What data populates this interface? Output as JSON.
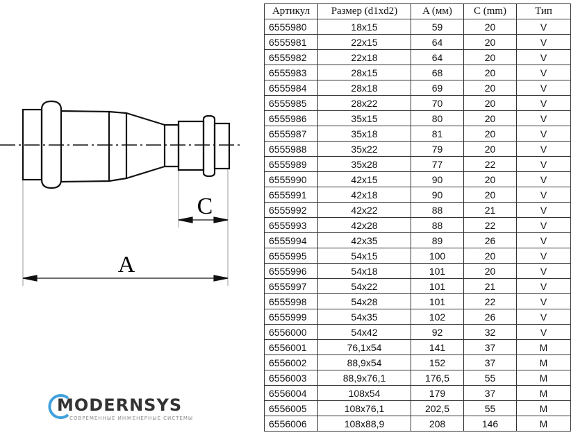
{
  "drawing": {
    "label_a": "A",
    "label_c": "C"
  },
  "table": {
    "headers": [
      "Артикул",
      "Размер (d1xd2)",
      "A (мм)",
      "C (mm)",
      "Тип"
    ],
    "rows": [
      [
        "6555980",
        "18x15",
        "59",
        "20",
        "V"
      ],
      [
        "6555981",
        "22x15",
        "64",
        "20",
        "V"
      ],
      [
        "6555982",
        "22x18",
        "64",
        "20",
        "V"
      ],
      [
        "6555983",
        "28x15",
        "68",
        "20",
        "V"
      ],
      [
        "6555984",
        "28x18",
        "69",
        "20",
        "V"
      ],
      [
        "6555985",
        "28x22",
        "70",
        "20",
        "V"
      ],
      [
        "6555986",
        "35x15",
        "80",
        "20",
        "V"
      ],
      [
        "6555987",
        "35x18",
        "81",
        "20",
        "V"
      ],
      [
        "6555988",
        "35x22",
        "79",
        "20",
        "V"
      ],
      [
        "6555989",
        "35x28",
        "77",
        "22",
        "V"
      ],
      [
        "6555990",
        "42x15",
        "90",
        "20",
        "V"
      ],
      [
        "6555991",
        "42x18",
        "90",
        "20",
        "V"
      ],
      [
        "6555992",
        "42x22",
        "88",
        "21",
        "V"
      ],
      [
        "6555993",
        "42x28",
        "88",
        "22",
        "V"
      ],
      [
        "6555994",
        "42x35",
        "89",
        "26",
        "V"
      ],
      [
        "6555995",
        "54x15",
        "100",
        "20",
        "V"
      ],
      [
        "6555996",
        "54x18",
        "101",
        "20",
        "V"
      ],
      [
        "6555997",
        "54x22",
        "101",
        "21",
        "V"
      ],
      [
        "6555998",
        "54x28",
        "101",
        "22",
        "V"
      ],
      [
        "6555999",
        "54x35",
        "102",
        "26",
        "V"
      ],
      [
        "6556000",
        "54x42",
        "92",
        "32",
        "V"
      ],
      [
        "6556001",
        "76,1x54",
        "141",
        "37",
        "M"
      ],
      [
        "6556002",
        "88,9x54",
        "152",
        "37",
        "M"
      ],
      [
        "6556003",
        "88,9x76,1",
        "176,5",
        "55",
        "M"
      ],
      [
        "6556004",
        "108x54",
        "179",
        "37",
        "M"
      ],
      [
        "6556005",
        "108x76,1",
        "202,5",
        "55",
        "M"
      ],
      [
        "6556006",
        "108x88,9",
        "208",
        "146",
        "M"
      ]
    ]
  },
  "watermark": {
    "name": "MODERNSYS",
    "tagline": "СОВРЕМЕННЫЕ ИНЖЕНЕРНЫЕ СИСТЕМЫ",
    "accent": "#1e90d6"
  }
}
